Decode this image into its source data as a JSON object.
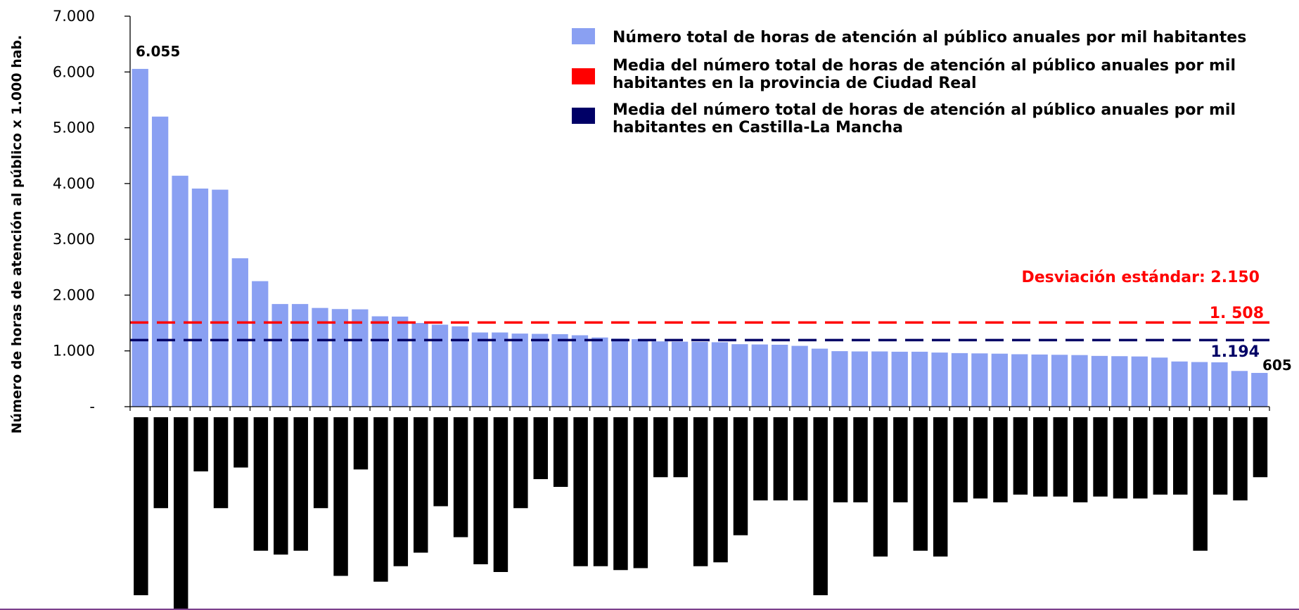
{
  "chart_data": {
    "type": "bar",
    "ylabel": "Número de horas de atención al público x 1.000 hab.",
    "ylim": [
      0,
      7000
    ],
    "y_ticks": [
      "-",
      "1.000",
      "2.000",
      "3.000",
      "4.000",
      "5.000",
      "6.000",
      "7.000"
    ],
    "y_tick_values": [
      0,
      1000,
      2000,
      3000,
      4000,
      5000,
      6000,
      7000
    ],
    "grid": false,
    "legend_position": "top-right",
    "series": [
      {
        "name": "Número total de horas de atención al público anuales por mil habitantes",
        "color": "#8aa0f2",
        "values": [
          6055,
          5200,
          4140,
          3910,
          3890,
          2660,
          2250,
          1840,
          1840,
          1770,
          1750,
          1745,
          1620,
          1615,
          1500,
          1470,
          1440,
          1330,
          1330,
          1310,
          1305,
          1300,
          1280,
          1240,
          1220,
          1210,
          1170,
          1165,
          1160,
          1155,
          1120,
          1115,
          1110,
          1090,
          1040,
          995,
          990,
          990,
          985,
          985,
          970,
          960,
          955,
          950,
          940,
          935,
          930,
          925,
          910,
          905,
          900,
          880,
          810,
          800,
          795,
          640,
          605
        ]
      }
    ],
    "reference_lines": [
      {
        "name": "Media del número total de horas de atención al público anuales por mil habitantes en la provincia de Ciudad Real",
        "value": 1508,
        "label": "1. 508",
        "color": "#ff0000"
      },
      {
        "name": "Media del número total de horas de atención al público anuales por mil habitantes en Castilla-La Mancha",
        "value": 1194,
        "label": "1.194",
        "color": "#000066"
      }
    ],
    "data_labels": {
      "first": "6.055",
      "last": "605"
    },
    "annotation": "Desviación estándar: 2.150",
    "category_label_heights": [
      0.92,
      0.47,
      1.0,
      0.28,
      0.47,
      0.26,
      0.69,
      0.71,
      0.69,
      0.47,
      0.82,
      0.27,
      0.85,
      0.77,
      0.7,
      0.46,
      0.62,
      0.76,
      0.8,
      0.47,
      0.32,
      0.36,
      0.77,
      0.77,
      0.79,
      0.78,
      0.31,
      0.31,
      0.77,
      0.75,
      0.61,
      0.43,
      0.43,
      0.43,
      0.92,
      0.44,
      0.44,
      0.72,
      0.44,
      0.69,
      0.72,
      0.44,
      0.42,
      0.44,
      0.4,
      0.41,
      0.41,
      0.44,
      0.41,
      0.42,
      0.42,
      0.4,
      0.4,
      0.69,
      0.4,
      0.43,
      0.31
    ]
  }
}
